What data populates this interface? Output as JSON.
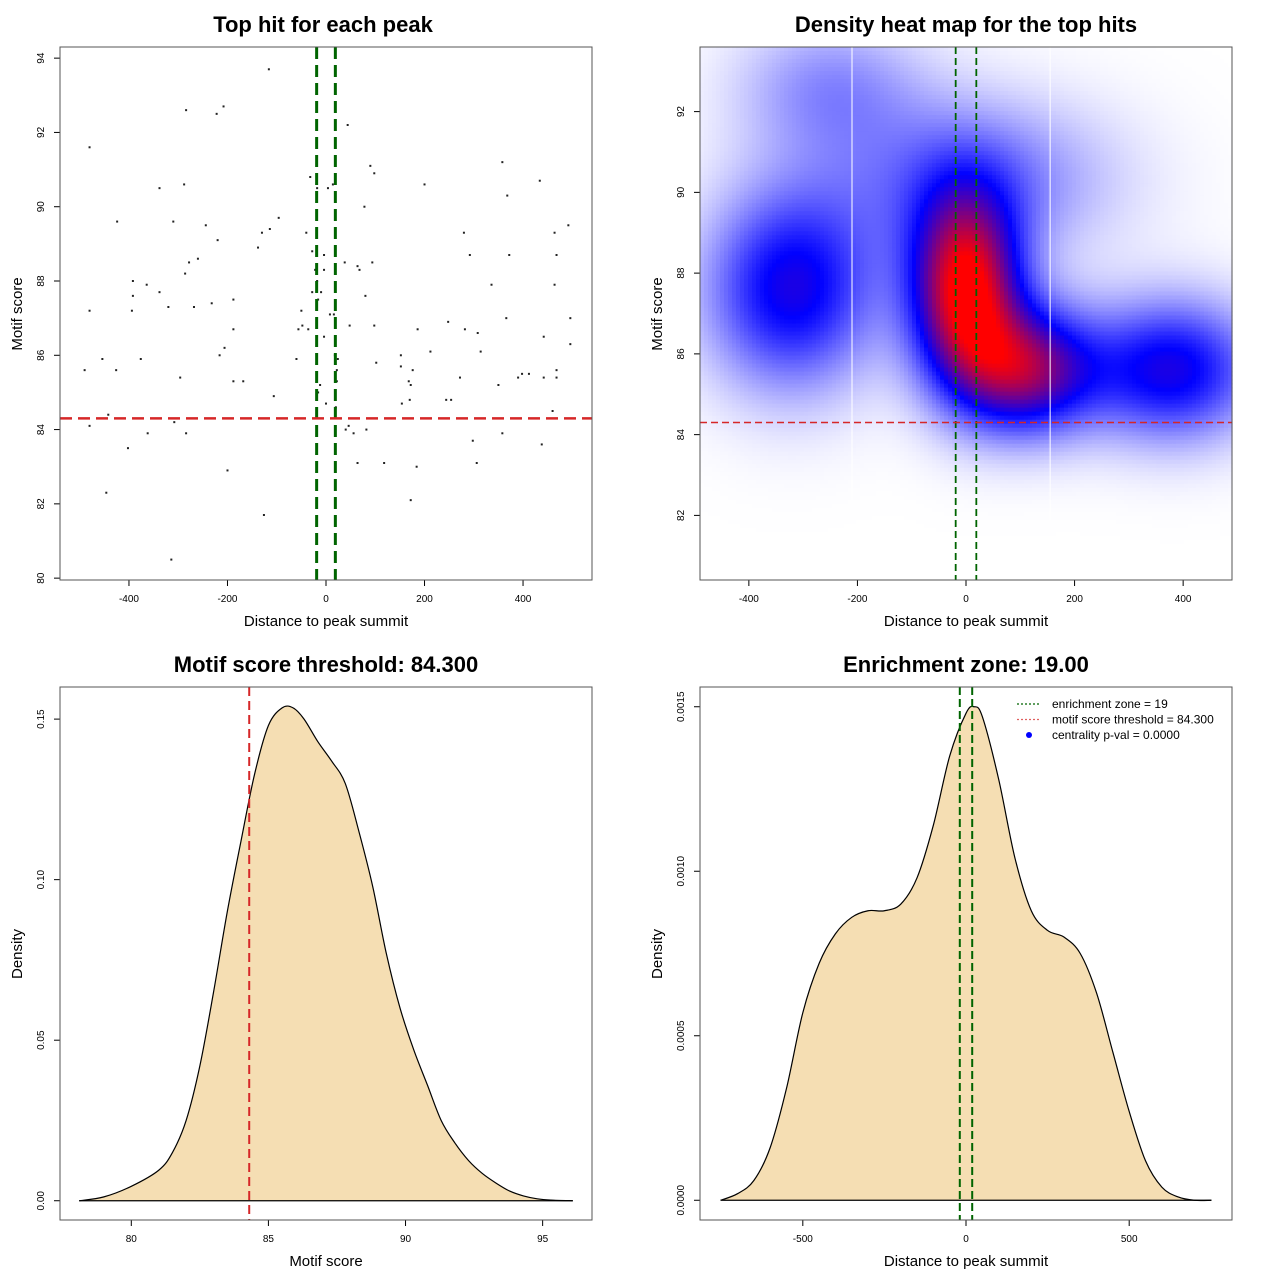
{
  "chart_data": [
    {
      "id": "scatter",
      "type": "scatter",
      "title": "Top hit for each peak",
      "xlabel": "Distance to peak summit",
      "ylabel": "Motif score",
      "xlim": [
        -540,
        540
      ],
      "ylim": [
        79.95,
        94.3
      ],
      "xticks": [
        -400,
        -200,
        0,
        200,
        400
      ],
      "yticks": [
        80,
        82,
        84,
        86,
        88,
        90,
        92,
        94
      ],
      "vlines": [
        -19,
        19
      ],
      "hline": 84.3,
      "vline_color": "#006400",
      "hline_color": "#d62728",
      "points": [
        [
          -116,
          93.7
        ],
        [
          -284,
          92.6
        ],
        [
          -208,
          92.7
        ],
        [
          -222,
          92.5
        ],
        [
          -480,
          91.6
        ],
        [
          -338,
          90.5
        ],
        [
          -288,
          90.6
        ],
        [
          -424,
          89.6
        ],
        [
          -310,
          89.6
        ],
        [
          -244,
          89.5
        ],
        [
          -96,
          89.7
        ],
        [
          -220,
          89.1
        ],
        [
          -130,
          89.3
        ],
        [
          -114,
          89.4
        ],
        [
          -138,
          88.9
        ],
        [
          -392,
          88.0
        ],
        [
          -364,
          87.9
        ],
        [
          -286,
          88.2
        ],
        [
          -278,
          88.5
        ],
        [
          -260,
          88.6
        ],
        [
          -392,
          87.6
        ],
        [
          -338,
          87.7
        ],
        [
          -320,
          87.3
        ],
        [
          -268,
          87.3
        ],
        [
          -232,
          87.4
        ],
        [
          -188,
          87.5
        ],
        [
          -480,
          87.2
        ],
        [
          -394,
          87.2
        ],
        [
          -188,
          86.7
        ],
        [
          -56,
          86.7
        ],
        [
          -48,
          86.8
        ],
        [
          -376,
          85.9
        ],
        [
          -454,
          85.9
        ],
        [
          -426,
          85.6
        ],
        [
          -490,
          85.6
        ],
        [
          -216,
          86.0
        ],
        [
          -206,
          86.2
        ],
        [
          -60,
          85.9
        ],
        [
          -296,
          85.4
        ],
        [
          -188,
          85.3
        ],
        [
          -168,
          85.3
        ],
        [
          -106,
          84.9
        ],
        [
          -480,
          84.1
        ],
        [
          -442,
          84.4
        ],
        [
          -308,
          84.2
        ],
        [
          -362,
          83.9
        ],
        [
          -402,
          83.5
        ],
        [
          -284,
          83.9
        ],
        [
          -200,
          82.9
        ],
        [
          -446,
          82.3
        ],
        [
          -126,
          81.7
        ],
        [
          -314,
          80.5
        ],
        [
          44,
          92.2
        ],
        [
          90,
          91.1
        ],
        [
          98,
          90.9
        ],
        [
          200,
          90.6
        ],
        [
          358,
          91.2
        ],
        [
          434,
          90.7
        ],
        [
          368,
          90.3
        ],
        [
          78,
          90.0
        ],
        [
          280,
          89.3
        ],
        [
          492,
          89.5
        ],
        [
          464,
          89.3
        ],
        [
          292,
          88.7
        ],
        [
          372,
          88.7
        ],
        [
          468,
          88.7
        ],
        [
          38,
          88.5
        ],
        [
          94,
          88.5
        ],
        [
          64,
          88.4
        ],
        [
          68,
          88.3
        ],
        [
          336,
          87.9
        ],
        [
          464,
          87.9
        ],
        [
          80,
          87.6
        ],
        [
          366,
          87.0
        ],
        [
          496,
          87.0
        ],
        [
          16,
          87.1
        ],
        [
          48,
          86.8
        ],
        [
          98,
          86.8
        ],
        [
          186,
          86.7
        ],
        [
          248,
          86.9
        ],
        [
          282,
          86.7
        ],
        [
          308,
          86.6
        ],
        [
          442,
          86.5
        ],
        [
          496,
          86.3
        ],
        [
          212,
          86.1
        ],
        [
          314,
          86.1
        ],
        [
          152,
          86.0
        ],
        [
          102,
          85.8
        ],
        [
          152,
          85.7
        ],
        [
          176,
          85.6
        ],
        [
          272,
          85.4
        ],
        [
          390,
          85.4
        ],
        [
          398,
          85.5
        ],
        [
          412,
          85.5
        ],
        [
          468,
          85.6
        ],
        [
          468,
          85.4
        ],
        [
          442,
          85.4
        ],
        [
          168,
          85.3
        ],
        [
          172,
          85.2
        ],
        [
          244,
          84.8
        ],
        [
          254,
          84.8
        ],
        [
          350,
          85.2
        ],
        [
          154,
          84.7
        ],
        [
          170,
          84.8
        ],
        [
          460,
          84.5
        ],
        [
          46,
          84.1
        ],
        [
          40,
          84.0
        ],
        [
          56,
          83.9
        ],
        [
          82,
          84.0
        ],
        [
          358,
          83.9
        ],
        [
          298,
          83.7
        ],
        [
          438,
          83.6
        ],
        [
          64,
          83.1
        ],
        [
          118,
          83.1
        ],
        [
          306,
          83.1
        ],
        [
          184,
          83.0
        ],
        [
          172,
          82.1
        ],
        [
          -32,
          90.8
        ],
        [
          -18,
          90.5
        ],
        [
          4,
          90.5
        ],
        [
          14,
          90.6
        ],
        [
          -40,
          89.3
        ],
        [
          -28,
          88.8
        ],
        [
          -4,
          88.7
        ],
        [
          -22,
          88.3
        ],
        [
          -4,
          88.3
        ],
        [
          -18,
          88.0
        ],
        [
          -28,
          87.7
        ],
        [
          -10,
          87.7
        ],
        [
          -16,
          87.5
        ],
        [
          -50,
          87.2
        ],
        [
          8,
          87.1
        ],
        [
          -36,
          86.7
        ],
        [
          -4,
          86.5
        ],
        [
          18,
          86.0
        ],
        [
          24,
          85.9
        ],
        [
          22,
          85.6
        ],
        [
          22,
          85.3
        ],
        [
          -12,
          85.2
        ],
        [
          -16,
          85.0
        ],
        [
          20,
          84.6
        ],
        [
          0,
          84.7
        ]
      ]
    },
    {
      "id": "heatmap",
      "type": "heatmap",
      "title": "Density heat map for the top hits",
      "xlabel": "Distance to peak summit",
      "ylabel": "Motif score",
      "xlim": [
        -490,
        490
      ],
      "ylim": [
        80.4,
        93.6
      ],
      "xticks": [
        -400,
        -200,
        0,
        200,
        400
      ],
      "yticks": [
        82,
        84,
        86,
        88,
        90,
        92
      ],
      "vlines": [
        -19,
        19
      ],
      "white_vlines": [
        -210,
        155
      ],
      "hline": 84.3,
      "colorscale": [
        "#ffffff",
        "#0000ff",
        "#ff0000"
      ],
      "density_modes": [
        {
          "x": 0,
          "y": 87.6,
          "weight": 1.0,
          "sx": 70,
          "sy": 1.6
        },
        {
          "x": 110,
          "y": 85.6,
          "weight": 0.75,
          "sx": 90,
          "sy": 1.1
        },
        {
          "x": -320,
          "y": 87.6,
          "weight": 0.55,
          "sx": 110,
          "sy": 1.7
        },
        {
          "x": 380,
          "y": 85.6,
          "weight": 0.55,
          "sx": 110,
          "sy": 1.2
        },
        {
          "x": -250,
          "y": 92.6,
          "weight": 0.22,
          "sx": 120,
          "sy": 1.2
        },
        {
          "x": 0,
          "y": 90.3,
          "weight": 0.3,
          "sx": 180,
          "sy": 1.4
        }
      ]
    },
    {
      "id": "score-density",
      "type": "area",
      "title": "Motif score threshold: 84.300",
      "xlabel": "Motif score",
      "ylabel": "Density",
      "xlim": [
        77.4,
        96.8
      ],
      "ylim": [
        -0.006,
        0.16
      ],
      "xticks": [
        80,
        85,
        90,
        95
      ],
      "yticks": [
        0.0,
        0.05,
        0.1,
        0.15
      ],
      "ytick_labels": [
        "0.00",
        "0.05",
        "0.10",
        "0.15"
      ],
      "vline": 84.3,
      "fill": "#f5deb3",
      "x": [
        78.1,
        79.0,
        80.0,
        81.0,
        81.5,
        82.0,
        82.5,
        83.0,
        83.5,
        84.0,
        84.5,
        85.0,
        85.5,
        85.9,
        86.3,
        86.8,
        87.3,
        87.8,
        88.3,
        88.8,
        89.3,
        89.8,
        90.3,
        90.8,
        91.3,
        91.8,
        92.3,
        92.8,
        93.3,
        93.8,
        94.3,
        94.8,
        95.3,
        96.1
      ],
      "y": [
        0.0,
        0.0012,
        0.0045,
        0.0095,
        0.015,
        0.025,
        0.042,
        0.065,
        0.09,
        0.112,
        0.133,
        0.148,
        0.1535,
        0.1535,
        0.15,
        0.143,
        0.137,
        0.13,
        0.115,
        0.098,
        0.077,
        0.06,
        0.047,
        0.036,
        0.025,
        0.018,
        0.0125,
        0.0085,
        0.0055,
        0.003,
        0.0015,
        0.0006,
        0.0002,
        0.0
      ]
    },
    {
      "id": "distance-density",
      "type": "area",
      "title": "Enrichment zone: 19.00",
      "xlabel": "Distance to peak summit",
      "ylabel": "Density",
      "xlim": [
        -815,
        815
      ],
      "ylim": [
        -6e-05,
        0.00156
      ],
      "xticks": [
        -500,
        0,
        500
      ],
      "yticks": [
        0.0,
        0.0005,
        0.001,
        0.0015
      ],
      "ytick_labels": [
        "0.0000",
        "0.0005",
        "0.0010",
        "0.0015"
      ],
      "vlines": [
        -19,
        19
      ],
      "fill": "#f5deb3",
      "legend": {
        "position": "top-right",
        "items": [
          {
            "label": "enrichment zone = 19",
            "style": "dotted-line",
            "color": "#006400"
          },
          {
            "label": "motif score threshold = 84.300",
            "style": "dotted-line",
            "color": "#e06060"
          },
          {
            "label": "centrality p-val = 0.0000",
            "style": "point",
            "color": "#0000ff"
          }
        ]
      },
      "x": [
        -752,
        -700,
        -650,
        -600,
        -550,
        -500,
        -450,
        -400,
        -350,
        -300,
        -250,
        -200,
        -150,
        -100,
        -50,
        0,
        25,
        50,
        100,
        150,
        200,
        250,
        300,
        350,
        400,
        450,
        500,
        550,
        600,
        650,
        700,
        752
      ],
      "y": [
        0.0,
        2e-05,
        6e-05,
        0.00016,
        0.00034,
        0.00057,
        0.00072,
        0.00081,
        0.00086,
        0.00088,
        0.00088,
        0.0009,
        0.00098,
        0.00114,
        0.00135,
        0.00148,
        0.0015,
        0.00147,
        0.00128,
        0.00104,
        0.00088,
        0.00082,
        0.0008,
        0.00075,
        0.00063,
        0.00045,
        0.00027,
        0.00012,
        4e-05,
        1e-05,
        0.0,
        0.0
      ]
    }
  ],
  "panels": [
    {
      "title": "Top hit for each peak",
      "xlabel": "Distance to peak summit",
      "ylabel": "Motif score"
    },
    {
      "title": "Density heat map for the top hits",
      "xlabel": "Distance to peak summit",
      "ylabel": "Motif score"
    },
    {
      "title": "Motif score threshold: 84.300",
      "xlabel": "Motif score",
      "ylabel": "Density"
    },
    {
      "title": "Enrichment zone: 19.00",
      "xlabel": "Distance to peak summit",
      "ylabel": "Density"
    }
  ]
}
